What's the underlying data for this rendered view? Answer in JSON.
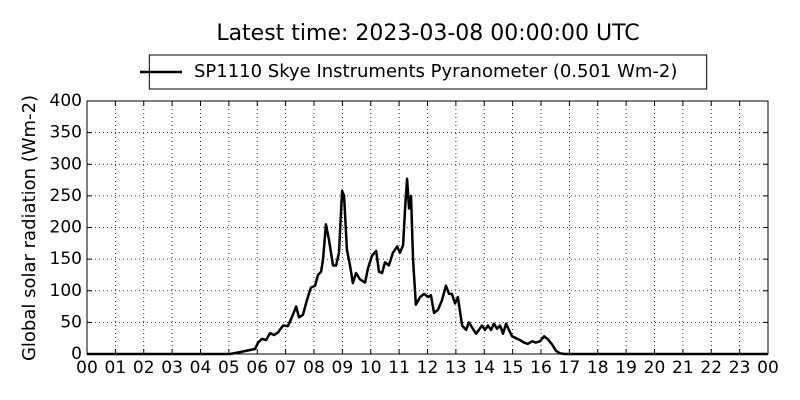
{
  "chart_data": {
    "type": "line",
    "title": "Latest time: 2023-03-08 00:00:00 UTC",
    "y_label": "Global solar radiation (Wm-2)",
    "x": [
      0,
      5.04,
      5.39,
      5.92,
      6.03,
      6.17,
      6.31,
      6.45,
      6.59,
      6.73,
      6.91,
      7.08,
      7.22,
      7.37,
      7.47,
      7.61,
      7.75,
      7.89,
      8.04,
      8.14,
      8.25,
      8.32,
      8.42,
      8.53,
      8.67,
      8.78,
      8.88,
      8.99,
      9.06,
      9.16,
      9.27,
      9.37,
      9.48,
      9.62,
      9.8,
      9.9,
      10.04,
      10.19,
      10.29,
      10.4,
      10.5,
      10.64,
      10.78,
      10.93,
      11.03,
      11.14,
      11.21,
      11.28,
      11.35,
      11.42,
      11.49,
      11.59,
      11.74,
      11.88,
      12.02,
      12.12,
      12.23,
      12.37,
      12.51,
      12.65,
      12.76,
      12.86,
      12.97,
      13.07,
      13.22,
      13.36,
      13.46,
      13.57,
      13.71,
      13.81,
      13.92,
      14.03,
      14.13,
      14.24,
      14.34,
      14.45,
      14.56,
      14.66,
      14.77,
      14.87,
      14.98,
      15.12,
      15.26,
      15.4,
      15.54,
      15.68,
      15.82,
      15.96,
      16.11,
      16.25,
      16.39,
      16.53,
      16.67,
      16.85,
      24
    ],
    "series": [
      {
        "name": "SP1110 Skye Instruments Pyranometer (0.501 Wm-2)",
        "color": "#000000",
        "values": [
          0,
          0,
          3,
          8,
          18,
          24,
          22,
          33,
          30,
          34,
          45,
          44,
          58,
          75,
          58,
          62,
          85,
          105,
          108,
          125,
          130,
          150,
          205,
          180,
          140,
          140,
          160,
          258,
          250,
          165,
          140,
          112,
          128,
          118,
          113,
          135,
          155,
          163,
          130,
          128,
          145,
          140,
          160,
          170,
          160,
          172,
          230,
          277,
          230,
          250,
          150,
          78,
          90,
          95,
          90,
          93,
          65,
          70,
          85,
          108,
          95,
          95,
          80,
          90,
          45,
          38,
          50,
          42,
          32,
          38,
          45,
          38,
          45,
          38,
          48,
          40,
          45,
          32,
          48,
          38,
          28,
          25,
          22,
          18,
          16,
          20,
          18,
          20,
          28,
          23,
          15,
          5,
          1,
          0,
          0
        ]
      }
    ],
    "xlim": [
      0,
      24
    ],
    "xticks": [
      {
        "value": 0,
        "label": "00"
      },
      {
        "value": 1,
        "label": "01"
      },
      {
        "value": 2,
        "label": "02"
      },
      {
        "value": 3,
        "label": "03"
      },
      {
        "value": 4,
        "label": "04"
      },
      {
        "value": 5,
        "label": "05"
      },
      {
        "value": 6,
        "label": "06"
      },
      {
        "value": 7,
        "label": "07"
      },
      {
        "value": 8,
        "label": "08"
      },
      {
        "value": 9,
        "label": "09"
      },
      {
        "value": 10,
        "label": "10"
      },
      {
        "value": 11,
        "label": "11"
      },
      {
        "value": 12,
        "label": "12"
      },
      {
        "value": 13,
        "label": "13"
      },
      {
        "value": 14,
        "label": "14"
      },
      {
        "value": 15,
        "label": "15"
      },
      {
        "value": 16,
        "label": "16"
      },
      {
        "value": 17,
        "label": "17"
      },
      {
        "value": 18,
        "label": "18"
      },
      {
        "value": 19,
        "label": "19"
      },
      {
        "value": 20,
        "label": "20"
      },
      {
        "value": 21,
        "label": "21"
      },
      {
        "value": 22,
        "label": "22"
      },
      {
        "value": 23,
        "label": "23"
      },
      {
        "value": 24,
        "label": "00"
      }
    ],
    "ylim": [
      0,
      400
    ],
    "yticks": [
      0,
      50,
      100,
      150,
      200,
      250,
      300,
      350,
      400
    ],
    "grid": true,
    "legend": "top"
  }
}
